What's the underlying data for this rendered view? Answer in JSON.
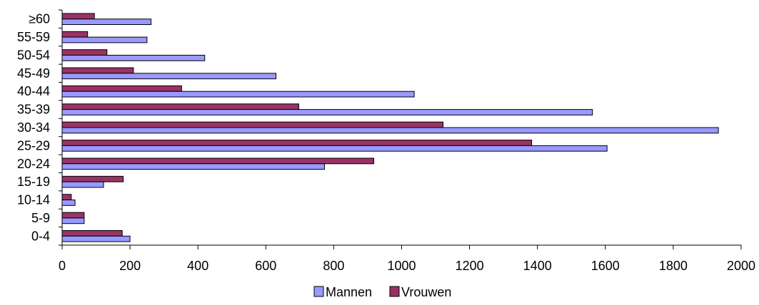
{
  "chart_data": {
    "type": "bar",
    "orientation": "horizontal",
    "categories": [
      "0-4",
      "5-9",
      "10-14",
      "15-19",
      "20-24",
      "25-29",
      "30-34",
      "35-39",
      "40-44",
      "45-49",
      "50-54",
      "55-59",
      "≥60"
    ],
    "series": [
      {
        "name": "Mannen",
        "color": "#9999ff",
        "values": [
          200,
          65,
          38,
          122,
          773,
          1605,
          1933,
          1562,
          1037,
          630,
          420,
          250,
          262
        ]
      },
      {
        "name": "Vrouwen",
        "color": "#993366",
        "values": [
          177,
          65,
          27,
          180,
          918,
          1383,
          1122,
          697,
          352,
          210,
          132,
          75,
          95
        ]
      }
    ],
    "x_ticks": [
      "0",
      "200",
      "400",
      "600",
      "800",
      "1000",
      "1200",
      "1400",
      "1600",
      "1800",
      "2000"
    ],
    "xlim": [
      0,
      2000
    ],
    "grid": false,
    "legend": "bottom-center"
  }
}
